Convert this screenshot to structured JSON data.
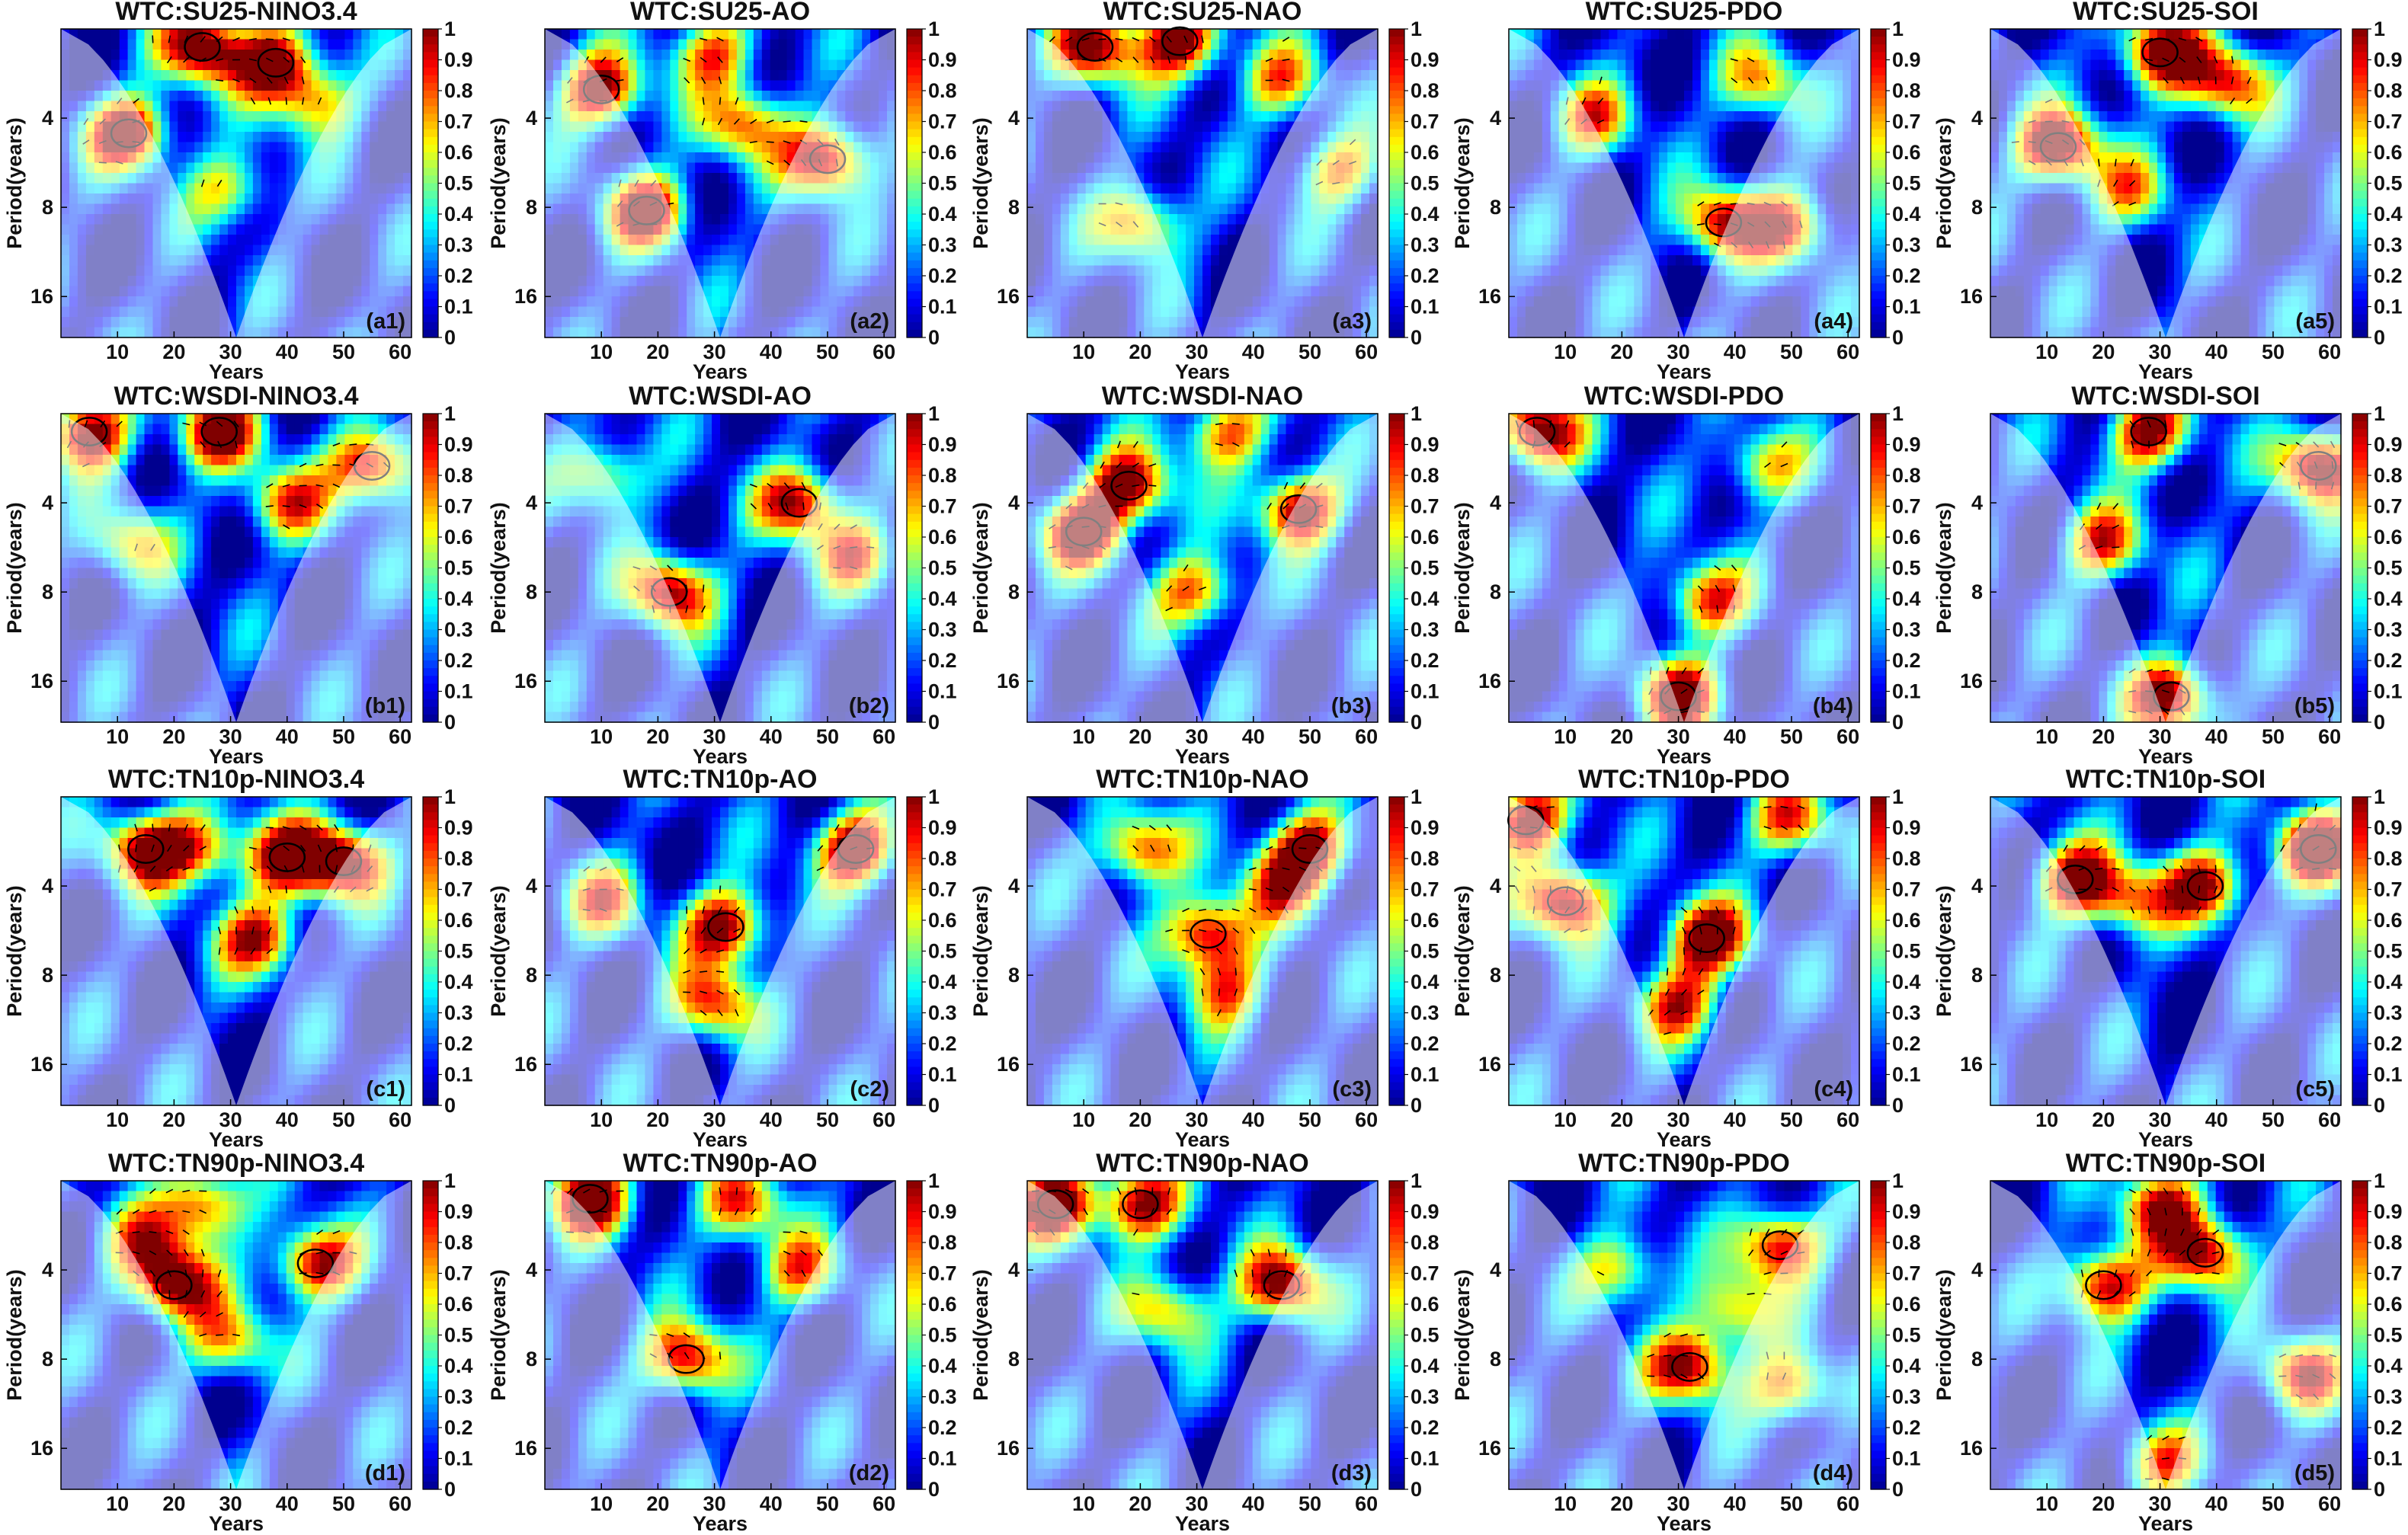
{
  "figure": {
    "colors": {
      "colormap": [
        "#00008f",
        "#0000ff",
        "#0080ff",
        "#00ffff",
        "#80ff80",
        "#ffff00",
        "#ff8000",
        "#ff0000",
        "#800000"
      ],
      "coi_shade": "#ffffff",
      "contour": "#000000",
      "arrow": "#000000"
    },
    "panels_shared": {
      "chart_type": "heatmap",
      "xlabel": "Years",
      "ylabel": "Period(years)",
      "x_ticks": [
        "10",
        "20",
        "30",
        "40",
        "50",
        "60"
      ],
      "x_tick_values": [
        10,
        20,
        30,
        40,
        50,
        60
      ],
      "xlim": [
        0,
        62
      ],
      "y_ticks": [
        "4",
        "8",
        "16"
      ],
      "y_tick_values": [
        4,
        8,
        16
      ],
      "ylim": [
        2,
        22
      ],
      "y_scale": "log2",
      "colorbar_ticks": [
        "0",
        "0.1",
        "0.2",
        "0.3",
        "0.4",
        "0.5",
        "0.6",
        "0.7",
        "0.8",
        "0.9",
        "1"
      ],
      "colorbar_range": [
        0,
        1
      ]
    }
  },
  "chart_data": [
    {
      "type": "heatmap",
      "title": "WTC:SU25-NINO3.4",
      "label": "(a1)",
      "hotspots": [
        [
          12,
          4.5,
          0.95
        ],
        [
          25,
          2.3,
          1.0
        ],
        [
          38,
          2.6,
          0.9
        ],
        [
          30,
          7.0,
          0.55
        ],
        [
          45,
          3.5,
          0.6
        ]
      ]
    },
    {
      "type": "heatmap",
      "title": "WTC:SU25-AO",
      "label": "(a2)",
      "hotspots": [
        [
          10,
          3.2,
          0.95
        ],
        [
          18,
          8.2,
          0.9
        ],
        [
          50,
          5.5,
          0.95
        ],
        [
          35,
          4.2,
          0.7
        ],
        [
          30,
          2.4,
          0.65
        ]
      ]
    },
    {
      "type": "heatmap",
      "title": "WTC:SU25-NAO",
      "label": "(a3)",
      "hotspots": [
        [
          12,
          2.3,
          0.9
        ],
        [
          27,
          2.2,
          0.95
        ],
        [
          20,
          9.0,
          0.7
        ],
        [
          45,
          3.0,
          0.6
        ],
        [
          55,
          6.0,
          0.6
        ]
      ]
    },
    {
      "type": "heatmap",
      "title": "WTC:SU25-PDO",
      "label": "(a4)",
      "hotspots": [
        [
          38,
          9.0,
          0.85
        ],
        [
          50,
          9.3,
          0.7
        ],
        [
          15,
          4.0,
          0.6
        ],
        [
          45,
          3.0,
          0.6
        ]
      ]
    },
    {
      "type": "heatmap",
      "title": "WTC:SU25-SOI",
      "label": "(a5)",
      "hotspots": [
        [
          12,
          5.0,
          1.0
        ],
        [
          30,
          2.4,
          0.95
        ],
        [
          42,
          3.0,
          0.8
        ],
        [
          25,
          7.0,
          0.5
        ]
      ]
    },
    {
      "type": "heatmap",
      "title": "WTC:WSDI-NINO3.4",
      "label": "(b1)",
      "hotspots": [
        [
          5,
          2.3,
          0.95
        ],
        [
          28,
          2.3,
          0.9
        ],
        [
          55,
          3.0,
          0.95
        ],
        [
          40,
          4.0,
          0.65
        ],
        [
          12,
          5.5,
          0.55
        ]
      ]
    },
    {
      "type": "heatmap",
      "title": "WTC:WSDI-AO",
      "label": "(b2)",
      "hotspots": [
        [
          22,
          8.0,
          0.9
        ],
        [
          45,
          4.0,
          0.85
        ],
        [
          10,
          3.2,
          0.6
        ],
        [
          55,
          6.0,
          0.6
        ]
      ]
    },
    {
      "type": "heatmap",
      "title": "WTC:WSDI-NAO",
      "label": "(b3)",
      "hotspots": [
        [
          10,
          5.0,
          0.95
        ],
        [
          18,
          3.5,
          0.9
        ],
        [
          48,
          4.2,
          0.95
        ],
        [
          30,
          8.0,
          0.7
        ],
        [
          35,
          2.3,
          0.7
        ]
      ]
    },
    {
      "type": "heatmap",
      "title": "WTC:WSDI-PDO",
      "label": "(b4)",
      "hotspots": [
        [
          5,
          2.3,
          1.0
        ],
        [
          30,
          18.0,
          0.9
        ],
        [
          35,
          8.5,
          0.75
        ],
        [
          45,
          3.0,
          0.55
        ]
      ]
    },
    {
      "type": "heatmap",
      "title": "WTC:WSDI-SOI",
      "label": "(b5)",
      "hotspots": [
        [
          58,
          3.0,
          1.0
        ],
        [
          32,
          18.0,
          0.95
        ],
        [
          28,
          2.3,
          0.9
        ],
        [
          20,
          5.5,
          0.7
        ]
      ]
    },
    {
      "type": "heatmap",
      "title": "WTC:TN10p-NINO3.4",
      "label": "(c1)",
      "hotspots": [
        [
          15,
          3.0,
          0.9
        ],
        [
          50,
          3.3,
          0.95
        ],
        [
          35,
          6.0,
          0.8
        ],
        [
          40,
          3.2,
          0.85
        ],
        [
          25,
          3.0,
          0.65
        ]
      ]
    },
    {
      "type": "heatmap",
      "title": "WTC:TN10p-AO",
      "label": "(c2)",
      "hotspots": [
        [
          55,
          3.0,
          1.0
        ],
        [
          32,
          5.5,
          0.95
        ],
        [
          30,
          10.0,
          0.75
        ],
        [
          10,
          4.5,
          0.6
        ]
      ]
    },
    {
      "type": "heatmap",
      "title": "WTC:TN10p-NAO",
      "label": "(c3)",
      "hotspots": [
        [
          32,
          5.8,
          0.95
        ],
        [
          50,
          3.0,
          0.9
        ],
        [
          20,
          3.0,
          0.8
        ],
        [
          35,
          9.0,
          0.6
        ],
        [
          45,
          4.0,
          0.6
        ]
      ]
    },
    {
      "type": "heatmap",
      "title": "WTC:TN10p-PDO",
      "label": "(c4)",
      "hotspots": [
        [
          10,
          4.5,
          1.0
        ],
        [
          35,
          6.0,
          1.0
        ],
        [
          3,
          2.4,
          0.9
        ],
        [
          50,
          2.4,
          0.7
        ],
        [
          30,
          10.0,
          0.7
        ]
      ]
    },
    {
      "type": "heatmap",
      "title": "WTC:TN10p-SOI",
      "label": "(c5)",
      "hotspots": [
        [
          58,
          3.0,
          1.0
        ],
        [
          15,
          3.8,
          0.9
        ],
        [
          38,
          4.0,
          0.85
        ],
        [
          25,
          4.5,
          0.6
        ]
      ]
    },
    {
      "type": "heatmap",
      "title": "WTC:TN90p-NINO3.4",
      "label": "(d1)",
      "hotspots": [
        [
          20,
          4.5,
          0.95
        ],
        [
          45,
          3.8,
          0.9
        ],
        [
          25,
          2.4,
          0.8
        ],
        [
          30,
          7.0,
          0.6
        ],
        [
          15,
          3.2,
          0.55
        ]
      ]
    },
    {
      "type": "heatmap",
      "title": "WTC:TN90p-AO",
      "label": "(d2)",
      "hotspots": [
        [
          8,
          2.3,
          1.0
        ],
        [
          25,
          8.0,
          0.9
        ],
        [
          35,
          2.4,
          0.7
        ],
        [
          45,
          4.0,
          0.6
        ]
      ]
    },
    {
      "type": "heatmap",
      "title": "WTC:TN90p-NAO",
      "label": "(d3)",
      "hotspots": [
        [
          5,
          2.4,
          1.0
        ],
        [
          45,
          4.5,
          0.95
        ],
        [
          20,
          2.4,
          0.9
        ],
        [
          25,
          5.5,
          0.6
        ]
      ]
    },
    {
      "type": "heatmap",
      "title": "WTC:TN90p-PDO",
      "label": "(d4)",
      "hotspots": [
        [
          48,
          3.3,
          0.9
        ],
        [
          32,
          8.5,
          0.9
        ],
        [
          50,
          10.0,
          0.7
        ],
        [
          20,
          4.0,
          0.6
        ],
        [
          40,
          5.5,
          0.6
        ]
      ]
    },
    {
      "type": "heatmap",
      "title": "WTC:TN90p-SOI",
      "label": "(d5)",
      "hotspots": [
        [
          20,
          4.5,
          0.95
        ],
        [
          38,
          3.5,
          0.9
        ],
        [
          55,
          9.0,
          0.75
        ],
        [
          30,
          2.4,
          0.8
        ],
        [
          30,
          18.0,
          0.6
        ]
      ]
    }
  ]
}
